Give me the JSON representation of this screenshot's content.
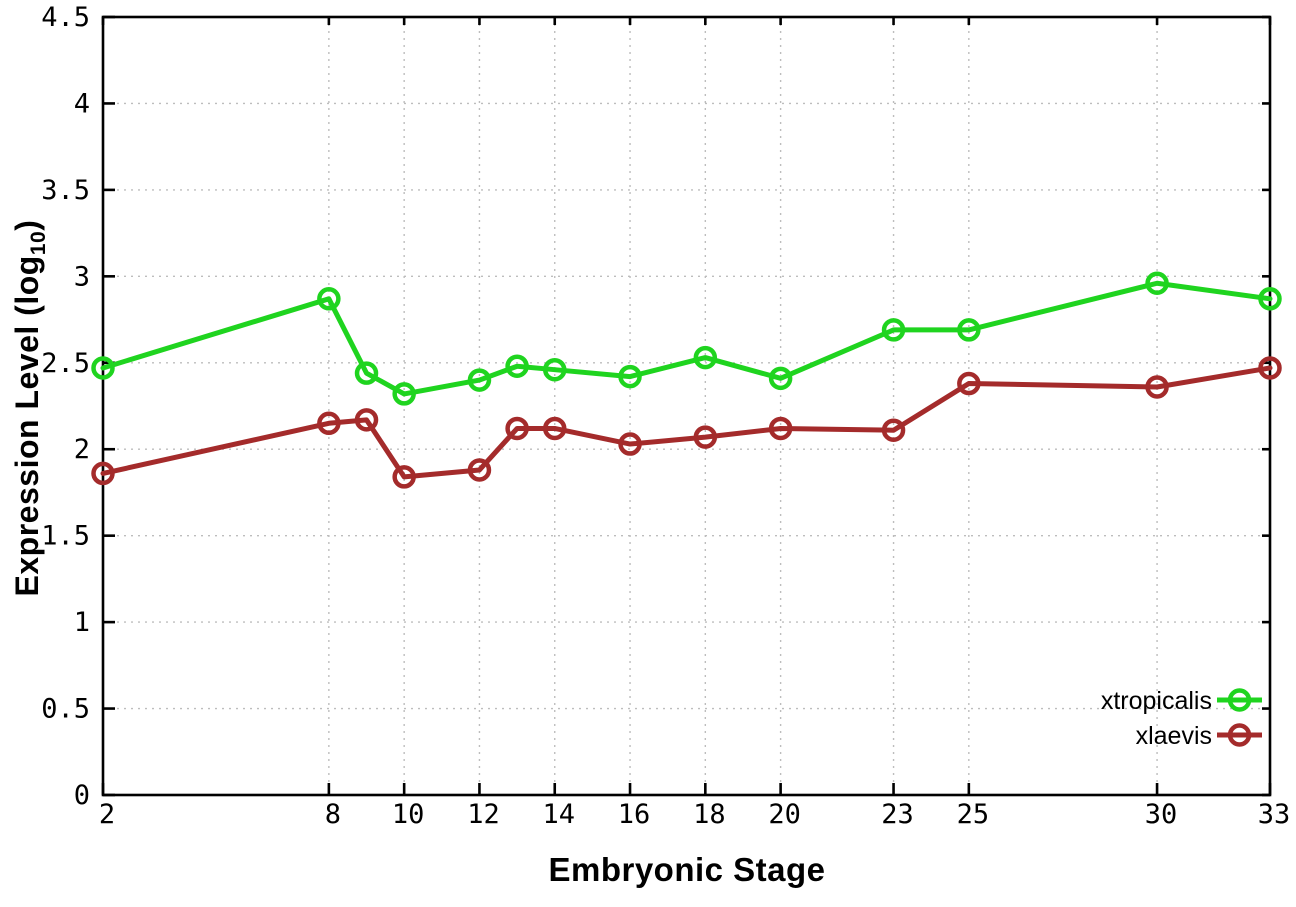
{
  "chart_data": {
    "type": "line",
    "xlabel": "Embryonic Stage",
    "ylabel": "Expression Level (log10)",
    "ylabel_parts": {
      "main": "Expression Level (log",
      "sub": "10",
      "end": ")"
    },
    "xlim": [
      2,
      33
    ],
    "ylim": [
      0,
      4.5
    ],
    "x_ticks": [
      2,
      8,
      10,
      12,
      14,
      16,
      18,
      20,
      23,
      25,
      30,
      33
    ],
    "x_tick_labels": [
      "2",
      "8",
      "10",
      "12",
      "14",
      "16",
      "18",
      "20",
      "23",
      "25",
      "30",
      "33"
    ],
    "y_ticks": [
      0,
      0.5,
      1,
      1.5,
      2,
      2.5,
      3,
      3.5,
      4,
      4.5
    ],
    "y_tick_labels": [
      "0",
      "0.5",
      "1",
      "1.5",
      "2",
      "2.5",
      "3",
      "3.5",
      "4",
      "4.5"
    ],
    "grid": true,
    "grid_color": "#bdbdbd",
    "border_color": "#000000",
    "legend_position": "bottom-right",
    "x": [
      2,
      8,
      9,
      10,
      12,
      13,
      14,
      16,
      18,
      20,
      23,
      25,
      30,
      33
    ],
    "series": [
      {
        "name": "xtropicalis",
        "color": "#1fd41f",
        "marker": "open-circle",
        "values": [
          2.47,
          2.87,
          2.44,
          2.32,
          2.4,
          2.48,
          2.46,
          2.42,
          2.53,
          2.41,
          2.69,
          2.69,
          2.96,
          2.87
        ]
      },
      {
        "name": "xlaevis",
        "color": "#a42b2b",
        "marker": "open-circle",
        "values": [
          1.86,
          2.15,
          2.17,
          1.84,
          1.88,
          2.12,
          2.12,
          2.03,
          2.07,
          2.12,
          2.11,
          2.38,
          2.36,
          2.47
        ]
      }
    ]
  }
}
